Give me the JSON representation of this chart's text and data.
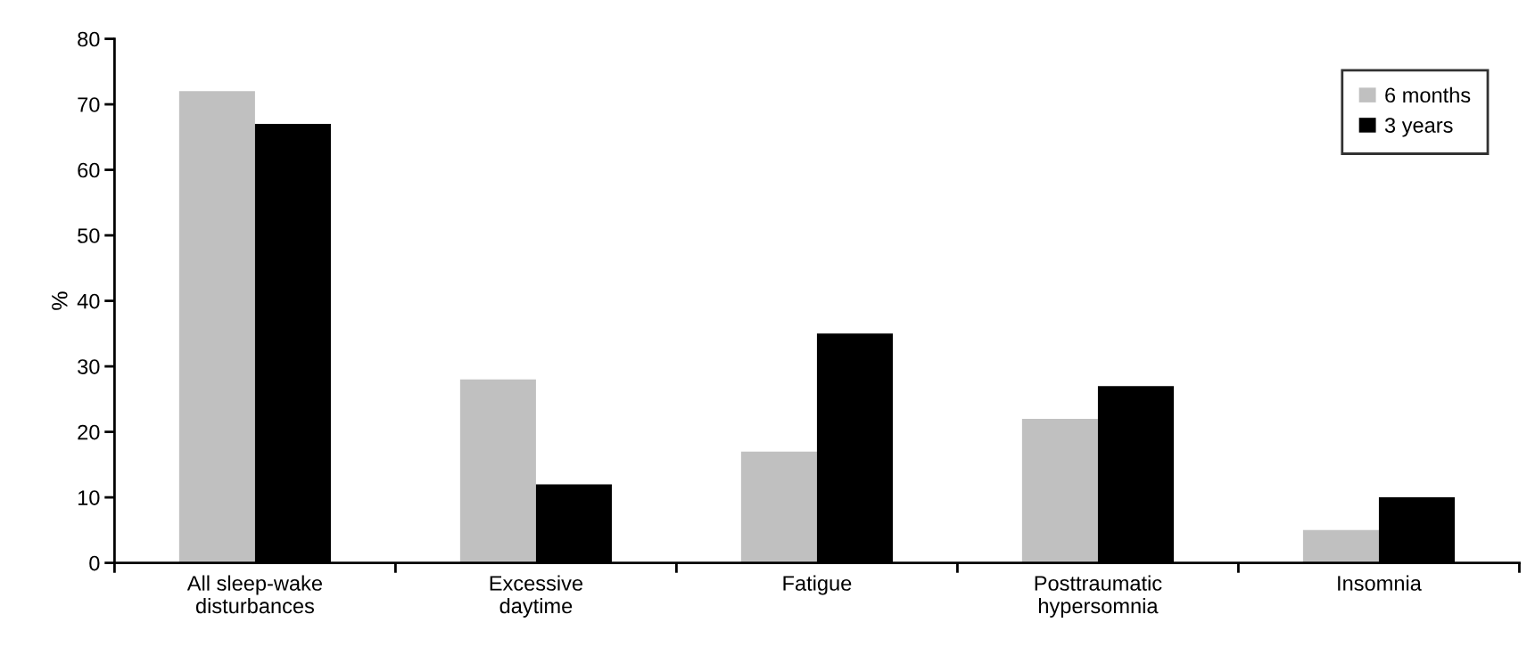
{
  "chart_data": {
    "type": "bar",
    "ylabel": "%",
    "categories": [
      "All sleep-wake\ndisturbances",
      "Excessive\ndaytime",
      "Fatigue",
      "Posttraumatic\nhypersomnia",
      "Insomnia"
    ],
    "series": [
      {
        "name": "6 months",
        "color": "#c0c0c0",
        "values": [
          72,
          28,
          17,
          22,
          5
        ]
      },
      {
        "name": "3 years",
        "color": "#000000",
        "values": [
          67,
          12,
          35,
          27,
          10
        ]
      }
    ],
    "ylim": [
      0,
      80
    ],
    "yticks": [
      0,
      10,
      20,
      30,
      40,
      50,
      60,
      70,
      80
    ],
    "grid": false,
    "legend": "top right"
  }
}
